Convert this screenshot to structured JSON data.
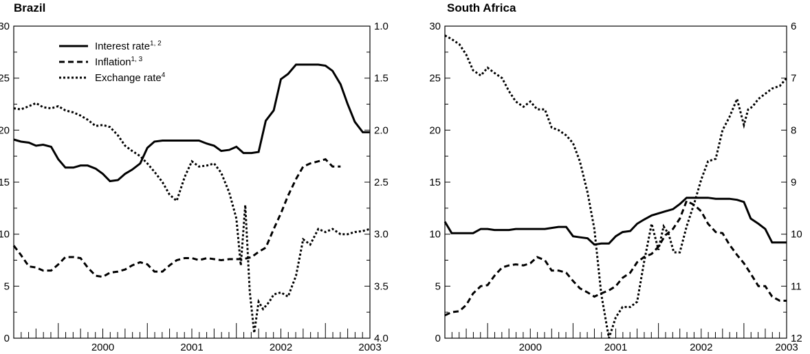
{
  "chart_data": [
    {
      "type": "line",
      "title": "Brazil",
      "ylim": [
        0,
        30
      ],
      "yticks": [
        "0",
        "5",
        "10",
        "15",
        "20",
        "25",
        "30"
      ],
      "y2lim": [
        1.0,
        4.0
      ],
      "y2_inverted": true,
      "y2ticks": [
        "1.0",
        "1.5",
        "2.0",
        "2.5",
        "3.0",
        "3.5",
        "4.0"
      ],
      "xlim": [
        1999.5,
        2003.5
      ],
      "xticks": [
        "2000",
        "2001",
        "2002",
        "2003"
      ],
      "legend": {
        "position": "top-left",
        "entries": [
          {
            "label": "Interest rate",
            "sup": "1, 2",
            "style": "solid"
          },
          {
            "label": "Inflation",
            "sup": "1, 3",
            "style": "dashed"
          },
          {
            "label": "Exchange rate",
            "sup": "4",
            "style": "dotted"
          }
        ]
      },
      "series": [
        {
          "key": "interest",
          "axis": "left",
          "style": "solid",
          "x": [
            1999.5,
            1999.58,
            1999.67,
            1999.75,
            1999.83,
            1999.92,
            2000.0,
            2000.08,
            2000.17,
            2000.25,
            2000.33,
            2000.42,
            2000.5,
            2000.58,
            2000.67,
            2000.75,
            2000.83,
            2000.92,
            2001.0,
            2001.08,
            2001.17,
            2001.25,
            2001.33,
            2001.5,
            2001.58,
            2001.67,
            2001.75,
            2001.83,
            2001.92,
            2002.0,
            2002.08,
            2002.17,
            2002.25,
            2002.33,
            2002.42,
            2002.5,
            2002.58,
            2002.67,
            2002.75,
            2002.83,
            2002.92,
            2003.0,
            2003.08,
            2003.17,
            2003.25,
            2003.33,
            2003.42,
            2003.5
          ],
          "y": [
            19.1,
            18.9,
            18.8,
            18.5,
            18.6,
            18.4,
            17.2,
            16.4,
            16.4,
            16.6,
            16.6,
            16.3,
            15.8,
            15.1,
            15.2,
            15.8,
            16.2,
            16.8,
            18.3,
            18.9,
            19.0,
            19.0,
            19.0,
            19.0,
            19.0,
            18.7,
            18.5,
            18.0,
            18.1,
            18.4,
            17.8,
            17.8,
            17.9,
            20.9,
            21.9,
            24.9,
            25.4,
            26.3,
            26.3,
            26.3,
            26.3,
            26.2,
            25.7,
            24.4,
            22.5,
            20.8,
            19.8,
            19.8
          ]
        },
        {
          "key": "inflation",
          "axis": "left",
          "style": "dashed",
          "x": [
            1999.5,
            1999.58,
            1999.67,
            1999.75,
            1999.83,
            1999.92,
            2000.0,
            2000.08,
            2000.17,
            2000.25,
            2000.33,
            2000.42,
            2000.5,
            2000.58,
            2000.67,
            2000.75,
            2000.83,
            2000.92,
            2001.0,
            2001.08,
            2001.17,
            2001.25,
            2001.33,
            2001.42,
            2001.5,
            2001.58,
            2001.67,
            2001.75,
            2001.83,
            2001.92,
            2002.0,
            2002.08,
            2002.17,
            2002.25,
            2002.33,
            2002.42,
            2002.5,
            2002.58,
            2002.67,
            2002.75,
            2002.83,
            2002.92,
            2003.0,
            2003.08,
            2003.17
          ],
          "y": [
            8.9,
            8.0,
            6.9,
            6.8,
            6.5,
            6.5,
            7.1,
            7.8,
            7.8,
            7.7,
            6.8,
            6.0,
            5.9,
            6.3,
            6.4,
            6.6,
            7.0,
            7.3,
            7.1,
            6.4,
            6.4,
            7.0,
            7.5,
            7.7,
            7.7,
            7.5,
            7.7,
            7.6,
            7.5,
            7.6,
            7.6,
            7.6,
            7.8,
            8.3,
            8.7,
            10.5,
            12.0,
            13.7,
            15.3,
            16.5,
            16.8,
            17.0,
            17.2,
            16.5,
            16.5
          ]
        },
        {
          "key": "exchange",
          "axis": "right",
          "style": "dotted",
          "x": [
            1999.5,
            1999.58,
            1999.67,
            1999.75,
            1999.83,
            1999.92,
            2000.0,
            2000.08,
            2000.17,
            2000.25,
            2000.33,
            2000.42,
            2000.5,
            2000.58,
            2000.67,
            2000.75,
            2000.83,
            2000.92,
            2001.0,
            2001.08,
            2001.17,
            2001.25,
            2001.33,
            2001.42,
            2001.5,
            2001.58,
            2001.67,
            2001.75,
            2001.83,
            2001.92,
            2002.0,
            2002.05,
            2002.1,
            2002.15,
            2002.2,
            2002.25,
            2002.3,
            2002.37,
            2002.42,
            2002.5,
            2002.58,
            2002.67,
            2002.75,
            2002.83,
            2002.92,
            2003.0,
            2003.08,
            2003.17,
            2003.25,
            2003.33,
            2003.42,
            2003.5
          ],
          "y": [
            1.79,
            1.8,
            1.77,
            1.74,
            1.78,
            1.79,
            1.77,
            1.81,
            1.83,
            1.86,
            1.9,
            1.96,
            1.95,
            1.97,
            2.05,
            2.15,
            2.2,
            2.25,
            2.32,
            2.4,
            2.5,
            2.62,
            2.68,
            2.45,
            2.3,
            2.35,
            2.34,
            2.32,
            2.41,
            2.6,
            2.85,
            3.3,
            2.72,
            3.55,
            3.95,
            3.65,
            3.72,
            3.65,
            3.58,
            3.56,
            3.6,
            3.4,
            3.05,
            3.1,
            2.95,
            2.98,
            2.95,
            3.0,
            3.0,
            2.98,
            2.97,
            2.95
          ]
        }
      ]
    },
    {
      "type": "line",
      "title": "South Africa",
      "ylim": [
        0,
        30
      ],
      "yticks": [
        "0",
        "5",
        "10",
        "15",
        "20",
        "25",
        "30"
      ],
      "y2lim": [
        6,
        12
      ],
      "y2_inverted": true,
      "y2ticks": [
        "6",
        "7",
        "8",
        "9",
        "10",
        "11",
        "12"
      ],
      "xlim": [
        1999.5,
        2003.5
      ],
      "xticks": [
        "2000",
        "2001",
        "2002",
        "2003"
      ],
      "series": [
        {
          "key": "interest",
          "axis": "left",
          "style": "solid",
          "x": [
            1999.5,
            1999.58,
            1999.67,
            1999.75,
            1999.83,
            1999.92,
            2000.0,
            2000.08,
            2000.17,
            2000.25,
            2000.33,
            2000.42,
            2000.5,
            2000.58,
            2000.67,
            2000.75,
            2000.83,
            2000.92,
            2001.0,
            2001.08,
            2001.17,
            2001.25,
            2001.33,
            2001.42,
            2001.5,
            2001.58,
            2001.67,
            2001.75,
            2001.83,
            2001.92,
            2002.0,
            2002.08,
            2002.17,
            2002.25,
            2002.33,
            2002.42,
            2002.5,
            2002.58,
            2002.67,
            2002.75,
            2002.83,
            2002.92,
            2003.0,
            2003.08,
            2003.17,
            2003.25,
            2003.33,
            2003.42,
            2003.5
          ],
          "y": [
            11.2,
            10.1,
            10.1,
            10.1,
            10.1,
            10.5,
            10.5,
            10.4,
            10.4,
            10.4,
            10.5,
            10.5,
            10.5,
            10.5,
            10.5,
            10.6,
            10.7,
            10.7,
            9.8,
            9.7,
            9.6,
            9.0,
            9.1,
            9.1,
            9.8,
            10.2,
            10.3,
            11.0,
            11.4,
            11.8,
            12.0,
            12.2,
            12.4,
            12.9,
            13.5,
            13.5,
            13.5,
            13.5,
            13.4,
            13.4,
            13.4,
            13.3,
            13.1,
            11.5,
            11.0,
            10.5,
            9.2,
            9.2,
            9.2
          ]
        },
        {
          "key": "inflation",
          "axis": "left",
          "style": "dashed",
          "x": [
            1999.5,
            1999.58,
            1999.67,
            1999.75,
            1999.83,
            1999.92,
            2000.0,
            2000.08,
            2000.17,
            2000.25,
            2000.33,
            2000.42,
            2000.5,
            2000.58,
            2000.67,
            2000.75,
            2000.83,
            2000.92,
            2001.0,
            2001.08,
            2001.17,
            2001.25,
            2001.33,
            2001.42,
            2001.5,
            2001.58,
            2001.67,
            2001.75,
            2001.83,
            2001.92,
            2002.0,
            2002.08,
            2002.17,
            2002.25,
            2002.33,
            2002.42,
            2002.5,
            2002.58,
            2002.67,
            2002.75,
            2002.83,
            2002.92,
            2003.0,
            2003.08,
            2003.17,
            2003.25,
            2003.33,
            2003.42,
            2003.5
          ],
          "y": [
            2.2,
            2.5,
            2.6,
            3.2,
            4.3,
            5.0,
            5.1,
            6.0,
            6.8,
            7.0,
            7.1,
            7.0,
            7.2,
            7.8,
            7.5,
            6.5,
            6.5,
            6.3,
            5.5,
            4.8,
            4.4,
            4.0,
            4.3,
            4.6,
            5.0,
            5.8,
            6.3,
            7.3,
            7.8,
            8.1,
            8.8,
            9.9,
            10.5,
            11.5,
            13.2,
            12.8,
            12.2,
            11.0,
            10.2,
            10.1,
            9.0,
            8.0,
            7.2,
            6.2,
            5.0,
            5.0,
            4.0,
            3.6,
            3.6
          ]
        },
        {
          "key": "exchange",
          "axis": "right",
          "style": "dotted",
          "x": [
            1999.5,
            1999.58,
            1999.67,
            1999.75,
            1999.83,
            1999.92,
            2000.0,
            2000.08,
            2000.17,
            2000.25,
            2000.33,
            2000.42,
            2000.5,
            2000.58,
            2000.67,
            2000.75,
            2000.83,
            2000.92,
            2001.0,
            2001.08,
            2001.17,
            2001.25,
            2001.33,
            2001.42,
            2001.5,
            2001.58,
            2001.67,
            2001.75,
            2001.83,
            2001.92,
            2002.0,
            2002.06,
            2002.12,
            2002.18,
            2002.25,
            2002.33,
            2002.42,
            2002.5,
            2002.58,
            2002.67,
            2002.75,
            2002.83,
            2002.92,
            2003.0,
            2003.05,
            2003.1,
            2003.17,
            2003.25,
            2003.33,
            2003.42,
            2003.5
          ],
          "y": [
            6.18,
            6.25,
            6.35,
            6.55,
            6.85,
            6.95,
            6.8,
            6.9,
            7.0,
            7.25,
            7.45,
            7.55,
            7.45,
            7.6,
            7.6,
            7.95,
            8.0,
            8.1,
            8.25,
            8.6,
            9.2,
            9.9,
            11.15,
            12.0,
            11.6,
            11.4,
            11.4,
            11.3,
            10.55,
            9.8,
            10.3,
            9.85,
            10.0,
            10.35,
            10.35,
            9.85,
            9.4,
            8.95,
            8.6,
            8.55,
            8.0,
            7.75,
            7.4,
            7.9,
            7.6,
            7.55,
            7.4,
            7.3,
            7.2,
            7.15,
            7.0
          ]
        }
      ]
    }
  ]
}
